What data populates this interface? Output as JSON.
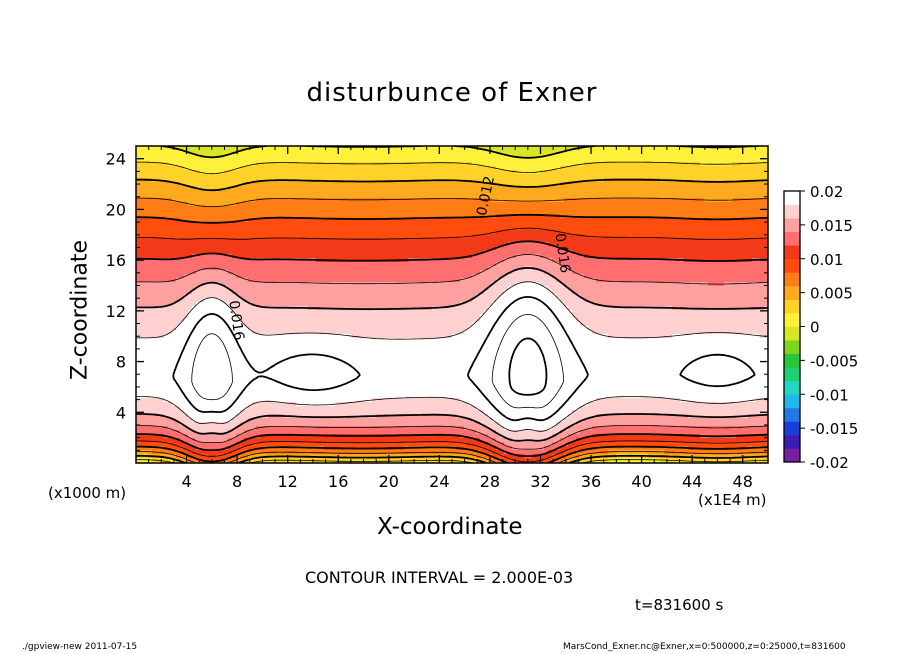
{
  "title": "disturbunce of Exner",
  "footer": {
    "left": "./gpview-new   2011-07-15",
    "right": "MarsCond_Exner.nc@Exner,x=0:500000,z=0:25000,t=831600"
  },
  "interval_text": "CONTOUR INTERVAL = 2.000E-03",
  "time_text": "t=831600 s",
  "colors": {
    "scale": [
      "#7a1fa2",
      "#3d1ab0",
      "#1a3fd6",
      "#1f7ae6",
      "#20b8e8",
      "#22d6c0",
      "#1fd070",
      "#25c83a",
      "#7fd51c",
      "#d8e628",
      "#fff03a",
      "#ffd22a",
      "#ffaa1e",
      "#ff7d14",
      "#ff4d10",
      "#f23a18",
      "#ff6f6f",
      "#ffa0a0",
      "#ffd0d0",
      "#ffffff"
    ]
  },
  "chart_data": {
    "type": "contour",
    "title": "disturbunce of Exner",
    "xlabel": "X-coordinate",
    "ylabel": "Z-coordinate",
    "x_unit_label": "(x1E4 m)",
    "y_unit_label": "(x1000 m)",
    "xlim": [
      0,
      50
    ],
    "ylim": [
      0,
      25
    ],
    "x_ticks": [
      4,
      8,
      12,
      16,
      20,
      24,
      28,
      32,
      36,
      40,
      44,
      48
    ],
    "y_ticks": [
      4,
      8,
      12,
      16,
      20,
      24
    ],
    "contour_interval": 0.002,
    "contour_labels": [
      {
        "text": "0.016",
        "x": 7.6,
        "z": 11.2
      },
      {
        "text": "0.012",
        "x": 28.0,
        "z": 21.0
      },
      {
        "text": "0.016",
        "x": 33.4,
        "z": 16.5
      }
    ],
    "colorbar": {
      "min": -0.02,
      "max": 0.02,
      "tick_values": [
        0.02,
        0.015,
        0.01,
        0.005,
        0,
        -0.005,
        -0.01,
        -0.015,
        -0.02
      ],
      "tick_labels": [
        "0.02",
        "0.015",
        "0.01",
        "0.005",
        "0",
        "-0.005",
        "-0.01",
        "-0.015",
        "-0.02"
      ]
    },
    "features": [
      {
        "description": "maximum near x=6, z=7.5",
        "x": 6,
        "z": 7.5,
        "value": 0.021
      },
      {
        "description": "maximum near x=30.5, z=8",
        "x": 30.5,
        "z": 8,
        "value": 0.022
      }
    ]
  }
}
